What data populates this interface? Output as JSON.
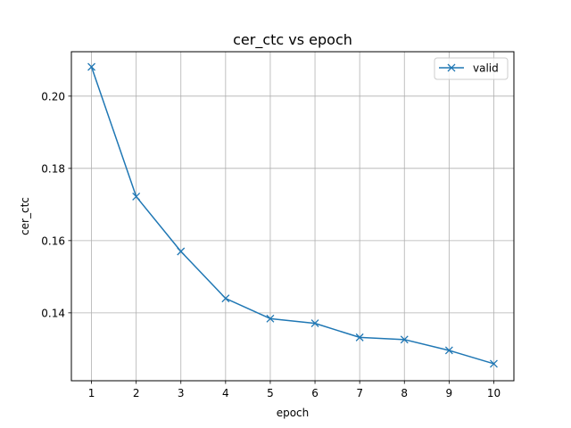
{
  "chart_data": {
    "type": "line",
    "title": "cer_ctc vs epoch",
    "xlabel": "epoch",
    "ylabel": "cer_ctc",
    "x": [
      1,
      2,
      3,
      4,
      5,
      6,
      7,
      8,
      9,
      10
    ],
    "xticks": [
      "1",
      "2",
      "3",
      "4",
      "5",
      "6",
      "7",
      "8",
      "9",
      "10"
    ],
    "yticks": [
      "0.14",
      "0.16",
      "0.18",
      "0.20"
    ],
    "ylim": [
      0.1212,
      0.2123
    ],
    "xlim": [
      0.55,
      10.45
    ],
    "grid": true,
    "legend_position": "top-right",
    "series": [
      {
        "name": "valid",
        "color": "#1f77b4",
        "marker": "x",
        "values": [
          0.2081,
          0.1722,
          0.157,
          0.144,
          0.1384,
          0.1371,
          0.1332,
          0.1326,
          0.1296,
          0.1259
        ]
      }
    ]
  }
}
